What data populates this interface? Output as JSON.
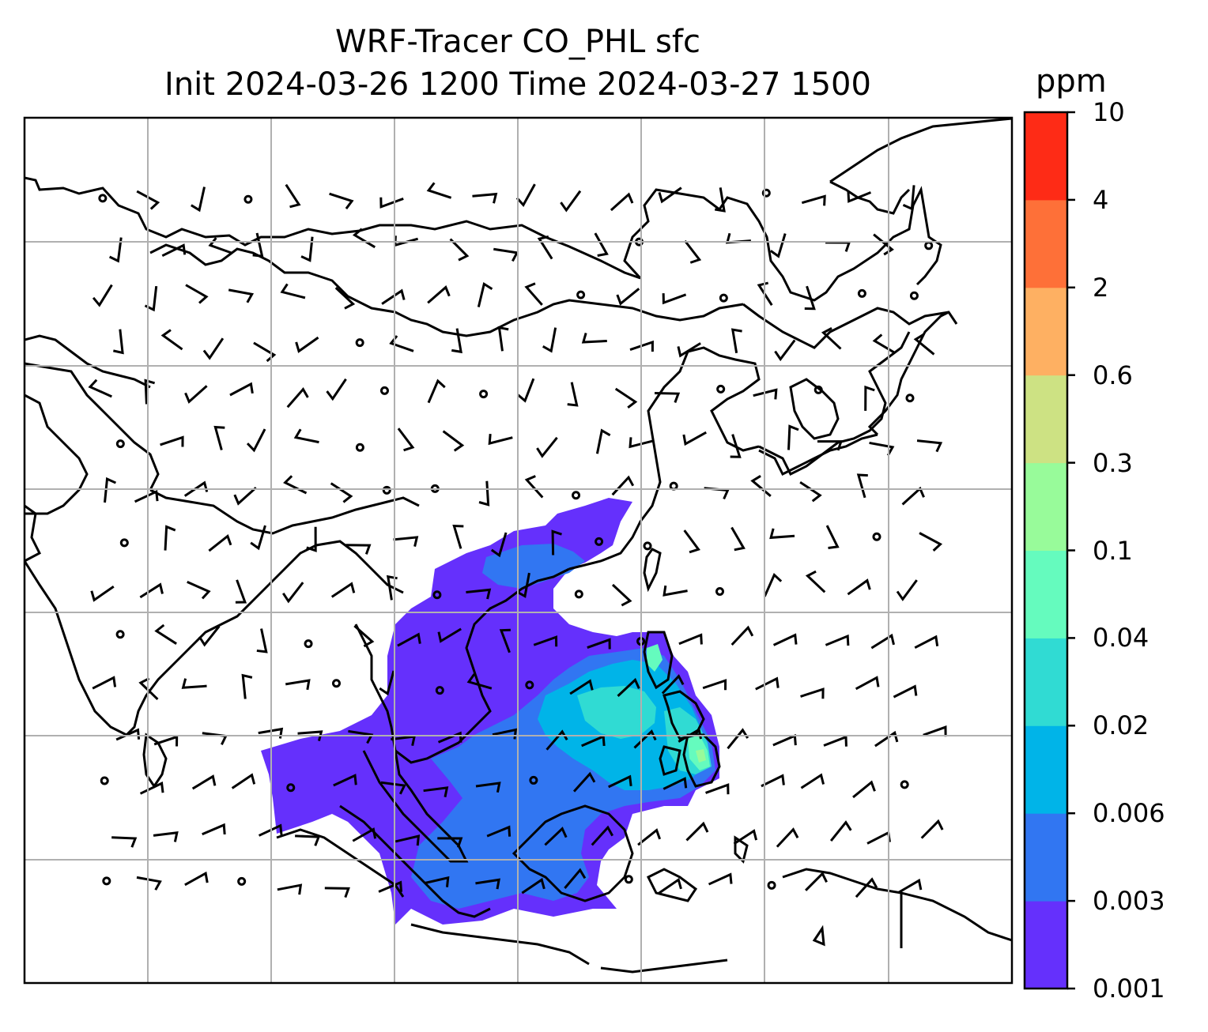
{
  "title": {
    "line1": "WRF-Tracer CO_PHL sfc",
    "line2": "Init 2024-03-26 1200 Time 2024-03-27 1500"
  },
  "colorbar": {
    "unit": "ppm",
    "levels": [
      "0.001",
      "0.003",
      "0.006",
      "0.02",
      "0.04",
      "0.1",
      "0.3",
      "0.6",
      "2",
      "4",
      "10"
    ],
    "colors": [
      "#6530fc",
      "#3176f2",
      "#00b4e8",
      "#30dbd3",
      "#65fbbe",
      "#98fb9a",
      "#cde283",
      "#feb062",
      "#fe7038",
      "#fe2b16"
    ]
  },
  "chart_data": {
    "type": "heatmap",
    "variable": "CO_PHL surface tracer concentration",
    "unit": "ppm",
    "contour_levels": [
      0.001,
      0.003,
      0.006,
      0.02,
      0.04,
      0.1,
      0.3,
      0.6,
      2,
      4,
      10
    ],
    "grid": true,
    "overlays": [
      "coastlines",
      "country-borders",
      "wind-barbs"
    ],
    "legend": "colorbar-right"
  }
}
